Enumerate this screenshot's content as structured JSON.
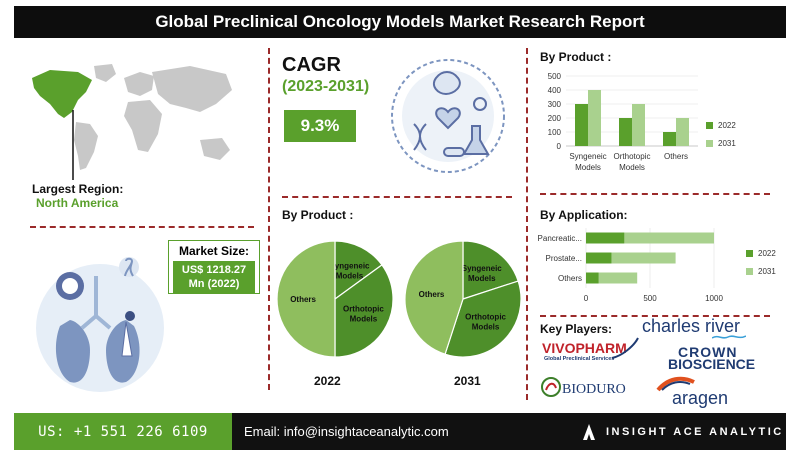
{
  "header": {
    "title": "Global Preclinical Oncology Models Market Research Report"
  },
  "region": {
    "label": "Largest Region:",
    "value": "North America"
  },
  "cagr": {
    "label": "CAGR",
    "period": "(2023-2031)",
    "value": "9.3%"
  },
  "market_size": {
    "label": "Market Size:",
    "value_line1": "US$ 1218.27",
    "value_line2": "Mn (2022)"
  },
  "sections": {
    "by_product_top": "By Product :",
    "by_product_pies": "By Product :",
    "by_application": "By Application:",
    "key_players": "Key Players:"
  },
  "pies": {
    "left_year": "2022",
    "right_year": "2031"
  },
  "players": {
    "charles_river": "charles river",
    "vivopharm": "VIVOPHARM",
    "vivopharm_sub": "Global Preclinical Services",
    "crown": "CROWN",
    "crown_sub": "BIOSCIENCE",
    "bioduro": "BIODURO",
    "aragen": "aragen"
  },
  "footer": {
    "phone": "US: +1 551 226 6109",
    "email": "Email: info@insightaceanalytic.com",
    "brand": "INSIGHT ACE ANALYTIC"
  },
  "colors": {
    "dark_green": "#5aa02c",
    "light_green": "#a9d18e",
    "pie_light": "#8fbe5e",
    "pie_dark": "#4e8f2a",
    "divider": "#9b2a2a"
  },
  "chart_data": [
    {
      "type": "bar",
      "title": "By Product :",
      "categories": [
        "Syngeneic Models",
        "Orthotopic Models",
        "Others"
      ],
      "category_lines": [
        [
          "Syngeneic",
          "Models"
        ],
        [
          "Orthotopic",
          "Models"
        ],
        [
          "Others"
        ]
      ],
      "series": [
        {
          "name": "2022",
          "values": [
            300,
            200,
            100
          ]
        },
        {
          "name": "2031",
          "values": [
            400,
            300,
            200
          ]
        }
      ],
      "ylim": [
        0,
        500
      ],
      "yticks": [
        0,
        100,
        200,
        300,
        400,
        500
      ],
      "legend": "right"
    },
    {
      "type": "bar",
      "orientation": "horizontal",
      "title": "By Application:",
      "categories": [
        "Pancreatic...",
        "Prostate...",
        "Others"
      ],
      "series": [
        {
          "name": "2022",
          "values": [
            300,
            200,
            100
          ]
        },
        {
          "name": "2031",
          "values": [
            700,
            500,
            300
          ]
        }
      ],
      "xlim": [
        0,
        1000
      ],
      "xticks": [
        0,
        500,
        1000
      ],
      "stacked": true,
      "legend": "right"
    },
    {
      "type": "pie",
      "title": "2022",
      "labels": [
        "Syngeneic Models",
        "Orthotopic Models",
        "Others"
      ],
      "label_lines": [
        [
          "Syngeneic",
          "Models"
        ],
        [
          "Orthotopic",
          "Models"
        ],
        [
          "Others"
        ]
      ],
      "values": [
        15,
        35,
        50
      ]
    },
    {
      "type": "pie",
      "title": "2031",
      "labels": [
        "Syngeneic Models",
        "Orthotopic Models",
        "Others"
      ],
      "label_lines": [
        [
          "Syngeneic",
          "Models"
        ],
        [
          "Orthotopic",
          "Models"
        ],
        [
          "Others"
        ]
      ],
      "values": [
        20,
        35,
        45
      ]
    }
  ]
}
